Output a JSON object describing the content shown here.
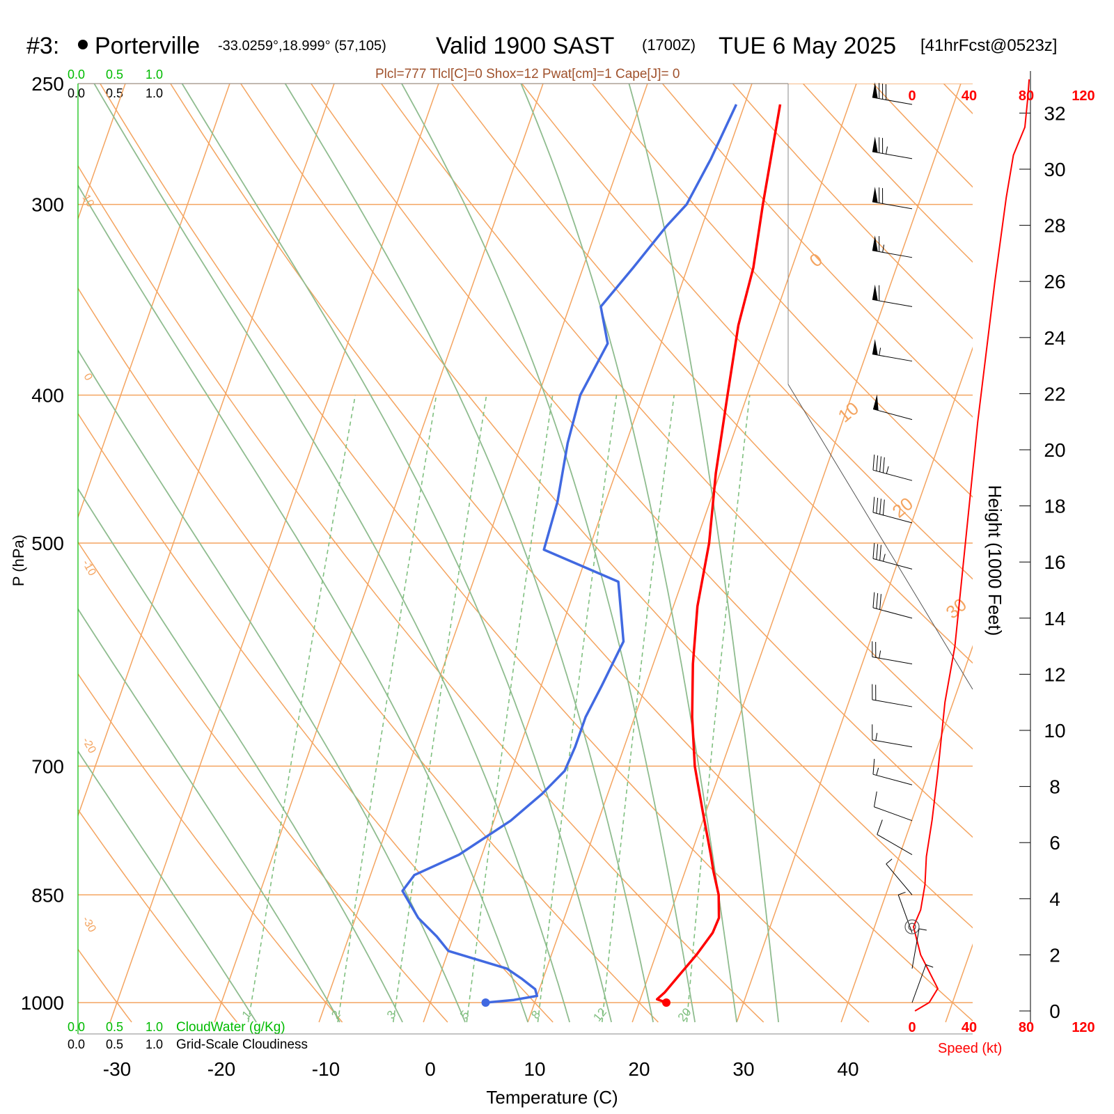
{
  "header": {
    "station_number": "#3:",
    "station_name": "Porterville",
    "coords": "-33.0259°,18.999° (57,105)",
    "valid_main": "Valid 1900 SAST",
    "valid_z": "(1700Z)",
    "valid_date": "TUE 6 May 2025",
    "fcst": "[41hrFcst@0523z]"
  },
  "indices": "Plcl=777 Tlcl[C]=0 Shox=12 Pwat[cm]=1 Cape[J]= 0",
  "cloud_scales": {
    "top_green": [
      "0.0",
      "0.5",
      "1.0"
    ],
    "top_black": [
      "0.0",
      "0.5",
      "1.0"
    ],
    "bottom_green": [
      "0.0",
      "0.5",
      "1.0"
    ],
    "bottom_black": [
      "0.0",
      "0.5",
      "1.0"
    ],
    "cloudwater_label": "CloudWater (g/Kg)",
    "cloudiness_label": "Grid-Scale Cloudiness"
  },
  "colors": {
    "temperature": "#ff0000",
    "dewpoint": "#4169e1",
    "isotherm": "#f4a460",
    "dry_adiabat": "#f4a460",
    "moist_adiabat": "#8fbc8f",
    "mixing_ratio": "#7fbf7f",
    "cloud_green": "#00bb00",
    "speed": "#ff0000",
    "indices": "#a0522d"
  },
  "chart_data": {
    "type": "line",
    "title": "",
    "xlabel": "Temperature (C)",
    "ylabel": "P (hPa)",
    "xlim": [
      -33,
      46
    ],
    "pressure_range_hpa": [
      1030,
      250
    ],
    "x_ticks": [
      -30,
      -20,
      -10,
      0,
      10,
      20,
      30,
      40
    ],
    "pressure_levels": [
      250,
      300,
      400,
      500,
      700,
      850,
      1000
    ],
    "pressure_scale": "log",
    "skewed_isotherm_labels": [
      "10",
      "0",
      "-10",
      "-20",
      "-30",
      "0",
      "10",
      "20",
      "30"
    ],
    "mixing_ratio_labels": [
      "1",
      "2",
      "3",
      "5",
      "8",
      "12",
      "20"
    ],
    "temperature_profile": [
      {
        "p": 1000,
        "t": 22.6
      },
      {
        "p": 995,
        "t": 21.6
      },
      {
        "p": 985,
        "t": 22.1
      },
      {
        "p": 960,
        "t": 22.9
      },
      {
        "p": 930,
        "t": 23.9
      },
      {
        "p": 900,
        "t": 24.7
      },
      {
        "p": 880,
        "t": 24.8
      },
      {
        "p": 850,
        "t": 24.0
      },
      {
        "p": 820,
        "t": 22.7
      },
      {
        "p": 800,
        "t": 21.9
      },
      {
        "p": 750,
        "t": 19.7
      },
      {
        "p": 700,
        "t": 17.4
      },
      {
        "p": 650,
        "t": 15.5
      },
      {
        "p": 600,
        "t": 13.8
      },
      {
        "p": 550,
        "t": 12.3
      },
      {
        "p": 500,
        "t": 11.3
      },
      {
        "p": 450,
        "t": 9.6
      },
      {
        "p": 400,
        "t": 8.1
      },
      {
        "p": 360,
        "t": 6.8
      },
      {
        "p": 330,
        "t": 6.3
      },
      {
        "p": 300,
        "t": 5.1
      },
      {
        "p": 258,
        "t": 3.4
      }
    ],
    "dewpoint_profile": [
      {
        "p": 1000,
        "t": 5.3
      },
      {
        "p": 996,
        "t": 7.9
      },
      {
        "p": 990,
        "t": 10.0
      },
      {
        "p": 980,
        "t": 9.6
      },
      {
        "p": 965,
        "t": 8.0
      },
      {
        "p": 950,
        "t": 6.2
      },
      {
        "p": 925,
        "t": 0.0
      },
      {
        "p": 905,
        "t": -1.6
      },
      {
        "p": 880,
        "t": -4.0
      },
      {
        "p": 845,
        "t": -6.4
      },
      {
        "p": 825,
        "t": -5.8
      },
      {
        "p": 800,
        "t": -2.2
      },
      {
        "p": 760,
        "t": 1.6
      },
      {
        "p": 730,
        "t": 3.7
      },
      {
        "p": 705,
        "t": 5.1
      },
      {
        "p": 680,
        "t": 5.3
      },
      {
        "p": 650,
        "t": 5.3
      },
      {
        "p": 620,
        "t": 5.8
      },
      {
        "p": 580,
        "t": 6.4
      },
      {
        "p": 530,
        "t": 3.9
      },
      {
        "p": 505,
        "t": -4.3
      },
      {
        "p": 470,
        "t": -4.6
      },
      {
        "p": 430,
        "t": -5.6
      },
      {
        "p": 400,
        "t": -6.0
      },
      {
        "p": 370,
        "t": -5.1
      },
      {
        "p": 350,
        "t": -7.0
      },
      {
        "p": 330,
        "t": -5.2
      },
      {
        "p": 310,
        "t": -3.4
      },
      {
        "p": 300,
        "t": -2.2
      },
      {
        "p": 280,
        "t": -1.4
      },
      {
        "p": 258,
        "t": -0.8
      }
    ],
    "height_axis": {
      "label": "Height (1000 Feet)",
      "ticks": [
        0,
        2,
        4,
        6,
        8,
        10,
        12,
        14,
        16,
        18,
        20,
        22,
        24,
        26,
        28,
        30,
        32
      ]
    },
    "wind_speed": {
      "label": "Speed (kt)",
      "ticks": [
        "0",
        "40",
        "80",
        "120"
      ],
      "profile_kt": [
        {
          "h": 0,
          "s": 2
        },
        {
          "h": 0.3,
          "s": 12
        },
        {
          "h": 0.8,
          "s": 18
        },
        {
          "h": 1.4,
          "s": 12
        },
        {
          "h": 2.0,
          "s": 6
        },
        {
          "h": 3.0,
          "s": 1
        },
        {
          "h": 3.6,
          "s": 6
        },
        {
          "h": 4.5,
          "s": 9
        },
        {
          "h": 5.5,
          "s": 10
        },
        {
          "h": 6.8,
          "s": 14
        },
        {
          "h": 8.5,
          "s": 18
        },
        {
          "h": 11,
          "s": 23
        },
        {
          "h": 13,
          "s": 30
        },
        {
          "h": 15,
          "s": 34
        },
        {
          "h": 18,
          "s": 40
        },
        {
          "h": 21,
          "s": 46
        },
        {
          "h": 23.5,
          "s": 52
        },
        {
          "h": 26,
          "s": 58
        },
        {
          "h": 27.5,
          "s": 62
        },
        {
          "h": 29,
          "s": 66
        },
        {
          "h": 30.5,
          "s": 71
        },
        {
          "h": 31.5,
          "s": 79
        },
        {
          "h": 32.5,
          "s": 81
        },
        {
          "h": 33.2,
          "s": 82
        }
      ]
    },
    "wind_barbs": [
      {
        "p": 258,
        "dir": 280,
        "kt": 80
      },
      {
        "p": 280,
        "dir": 280,
        "kt": 75
      },
      {
        "p": 302,
        "dir": 280,
        "kt": 70
      },
      {
        "p": 325,
        "dir": 280,
        "kt": 65
      },
      {
        "p": 350,
        "dir": 280,
        "kt": 60
      },
      {
        "p": 380,
        "dir": 280,
        "kt": 55
      },
      {
        "p": 415,
        "dir": 285,
        "kt": 50
      },
      {
        "p": 455,
        "dir": 285,
        "kt": 45
      },
      {
        "p": 485,
        "dir": 285,
        "kt": 40
      },
      {
        "p": 520,
        "dir": 285,
        "kt": 35
      },
      {
        "p": 560,
        "dir": 285,
        "kt": 30
      },
      {
        "p": 600,
        "dir": 280,
        "kt": 25
      },
      {
        "p": 640,
        "dir": 280,
        "kt": 20
      },
      {
        "p": 680,
        "dir": 280,
        "kt": 15
      },
      {
        "p": 720,
        "dir": 285,
        "kt": 15
      },
      {
        "p": 760,
        "dir": 290,
        "kt": 10
      },
      {
        "p": 800,
        "dir": 300,
        "kt": 10
      },
      {
        "p": 850,
        "dir": 320,
        "kt": 5
      },
      {
        "p": 900,
        "dir": 340,
        "kt": 5
      },
      {
        "p": 950,
        "dir": 10,
        "kt": 5
      },
      {
        "p": 1000,
        "dir": 20,
        "kt": 5
      }
    ]
  }
}
